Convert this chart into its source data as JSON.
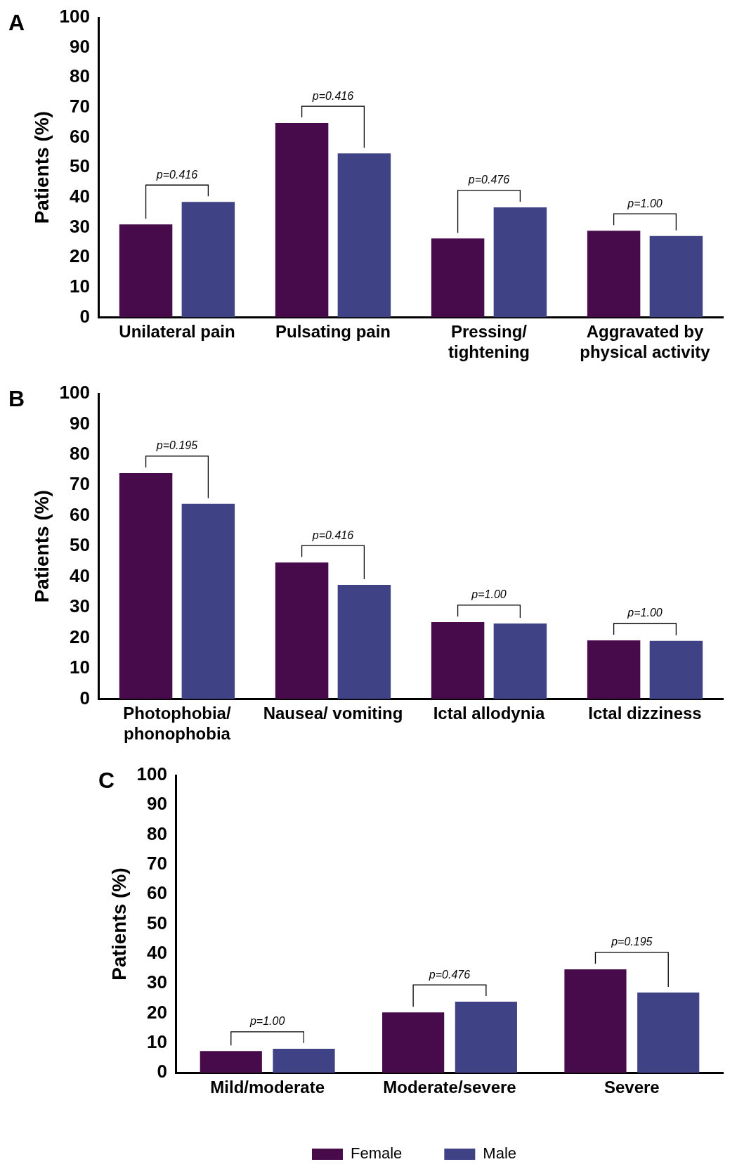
{
  "chart_data": [
    {
      "type": "bar",
      "title": "A",
      "ylabel": "Patients (%)",
      "categories": [
        "Unilateral pain",
        "Pulsating pain",
        "Pressing/ tightening",
        "Aggravated by physical activity"
      ],
      "series": [
        {
          "color": "#470a4a",
          "values": [
            31,
            64.8,
            26.3,
            28.9
          ]
        },
        {
          "color": "#3f4386",
          "values": [
            38.5,
            54.7,
            36.7,
            27.1
          ]
        }
      ],
      "ylim": [
        0,
        100
      ],
      "yticks": [
        0,
        10,
        20,
        30,
        40,
        50,
        60,
        70,
        80,
        90,
        100
      ],
      "legend": false,
      "annotations": [
        "p=0.416",
        "p=0.416",
        "p=0.476",
        "p=1.00"
      ]
    },
    {
      "type": "bar",
      "title": "B",
      "ylabel": "Patients (%)",
      "categories": [
        "Photophobia/ phonophobia",
        "Nausea/ vomiting",
        "Ictal allodynia",
        "Ictal dizziness"
      ],
      "series": [
        {
          "color": "#470a4a",
          "values": [
            74,
            44.7,
            25.2,
            19.2
          ]
        },
        {
          "color": "#3f4386",
          "values": [
            63.9,
            37.4,
            24.7,
            19
          ]
        }
      ],
      "ylim": [
        0,
        100
      ],
      "yticks": [
        0,
        10,
        20,
        30,
        40,
        50,
        60,
        70,
        80,
        90,
        100
      ],
      "legend": false,
      "annotations": [
        "p=0.195",
        "p=0.416",
        "p=1.00",
        "p=1.00"
      ]
    },
    {
      "type": "bar",
      "title": "C",
      "ylabel": "Patients (%)",
      "categories": [
        "Mild/moderate",
        "Moderate/severe",
        "Severe"
      ],
      "series": [
        {
          "name": "Female",
          "color": "#470a4a",
          "values": [
            7.3,
            20.3,
            34.8
          ]
        },
        {
          "name": "Male",
          "color": "#3f4386",
          "values": [
            8.1,
            23.9,
            27
          ]
        }
      ],
      "ylim": [
        0,
        100
      ],
      "yticks": [
        0,
        10,
        20,
        30,
        40,
        50,
        60,
        70,
        80,
        90,
        100
      ],
      "legend": "bottom",
      "annotations": [
        "p=1.00",
        "p=0.476",
        "p=0.195"
      ]
    }
  ]
}
